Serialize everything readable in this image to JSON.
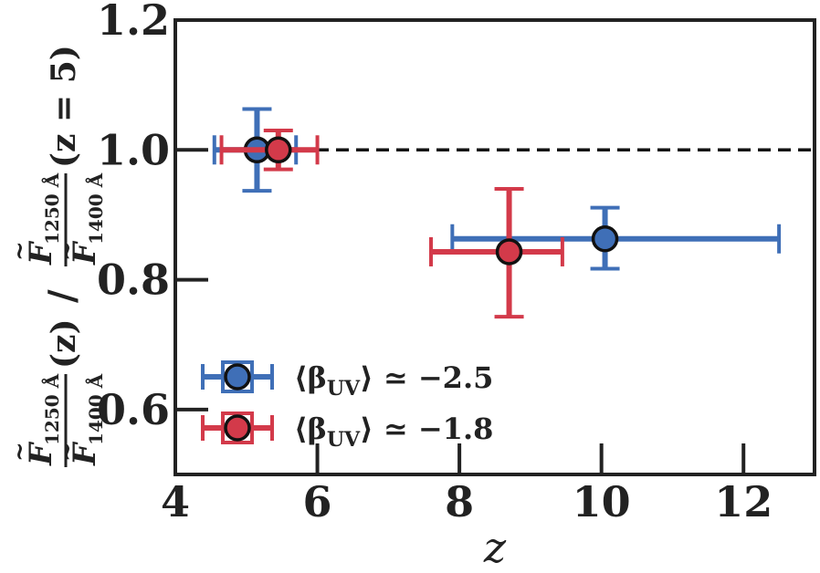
{
  "chart_data": {
    "type": "scatter",
    "xlabel": "z",
    "ylabel": {
      "lhs_num_sub": "1250 Å",
      "lhs_den_sub": "1400 Å",
      "lhs_arg": "(z)",
      "divider": "/",
      "rhs_num_sub": "1250 Å",
      "rhs_den_sub": "1400 Å",
      "rhs_arg": "(z = 5)"
    },
    "xlim": [
      4,
      13
    ],
    "ylim": [
      0.5,
      1.2
    ],
    "xticks": [
      {
        "value": 4,
        "label": "4"
      },
      {
        "value": 6,
        "label": "6"
      },
      {
        "value": 8,
        "label": "8"
      },
      {
        "value": 10,
        "label": "10"
      },
      {
        "value": 12,
        "label": "12"
      }
    ],
    "yticks": [
      {
        "value": 0.6,
        "label": "0.6"
      },
      {
        "value": 0.8,
        "label": "0.8"
      },
      {
        "value": 1.0,
        "label": "1.0"
      },
      {
        "value": 1.2,
        "label": "1.2"
      }
    ],
    "reference_line": {
      "y": 1.0,
      "style": "dashed",
      "color": "#111111"
    },
    "legend_position": "lower-left",
    "series": [
      {
        "name": "⟨β_UV⟩ ≃ −2.5",
        "color": "#3f6fb7",
        "points": [
          {
            "x": 5.15,
            "y": 1.0,
            "xlo": 4.55,
            "xhi": 5.7,
            "ylo": 0.937,
            "yhi": 1.063
          },
          {
            "x": 10.05,
            "y": 0.863,
            "xlo": 7.9,
            "xhi": 12.5,
            "ylo": 0.817,
            "yhi": 0.911
          }
        ]
      },
      {
        "name": "⟨β_UV⟩ ≃ −1.8",
        "color": "#d33a4a",
        "points": [
          {
            "x": 5.45,
            "y": 1.0,
            "xlo": 4.65,
            "xhi": 6.0,
            "ylo": 0.97,
            "yhi": 1.03
          },
          {
            "x": 8.7,
            "y": 0.843,
            "xlo": 7.6,
            "xhi": 9.45,
            "ylo": 0.743,
            "yhi": 0.94
          }
        ]
      }
    ],
    "legend_entries": [
      {
        "prefix": "⟨β",
        "sub": "UV",
        "suffix": "⟩ ≃ −2.5"
      },
      {
        "prefix": "⟨β",
        "sub": "UV",
        "suffix": "⟩ ≃ −1.8"
      }
    ]
  }
}
